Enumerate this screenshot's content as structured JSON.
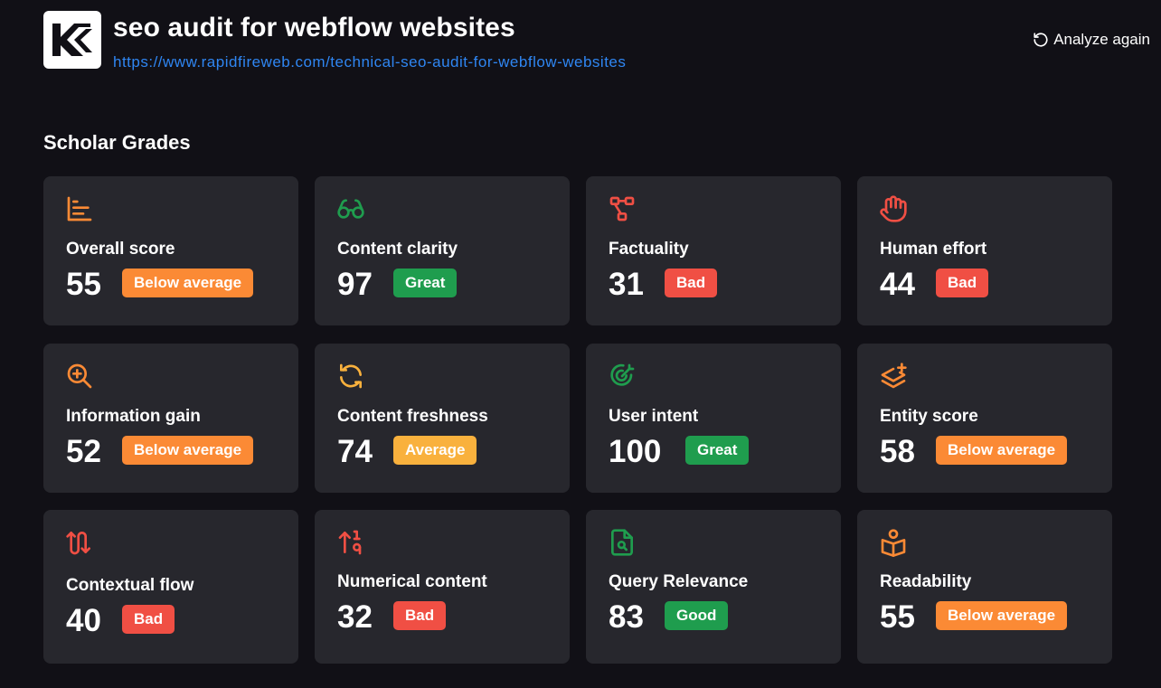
{
  "header": {
    "title": "seo audit for webflow websites",
    "url": "https://www.rapidfireweb.com/technical-seo-audit-for-webflow-websites",
    "analyze_label": "Analyze again"
  },
  "section_title": "Scholar Grades",
  "colors": {
    "orange": "#fb8a35",
    "green": "#1f9d4e",
    "red": "#f04f44",
    "amber": "#f9b13d",
    "link": "#2f86f2"
  },
  "cards": [
    {
      "label": "Overall score",
      "score": "55",
      "grade": "Below average",
      "icon": "bar-chart-icon"
    },
    {
      "label": "Content clarity",
      "score": "97",
      "grade": "Great",
      "icon": "glasses-icon"
    },
    {
      "label": "Factuality",
      "score": "31",
      "grade": "Bad",
      "icon": "workflow-icon"
    },
    {
      "label": "Human effort",
      "score": "44",
      "grade": "Bad",
      "icon": "hand-icon"
    },
    {
      "label": "Information gain",
      "score": "52",
      "grade": "Below average",
      "icon": "zoom-in-icon"
    },
    {
      "label": "Content freshness",
      "score": "74",
      "grade": "Average",
      "icon": "refresh-icon"
    },
    {
      "label": "User intent",
      "score": "100",
      "grade": "Great",
      "icon": "target-icon"
    },
    {
      "label": "Entity score",
      "score": "58",
      "grade": "Below average",
      "icon": "layers-plus-icon"
    },
    {
      "label": "Contextual flow",
      "score": "40",
      "grade": "Bad",
      "icon": "flow-arrows-icon"
    },
    {
      "label": "Numerical content",
      "score": "32",
      "grade": "Bad",
      "icon": "sort-numeric-icon"
    },
    {
      "label": "Query Relevance",
      "score": "83",
      "grade": "Good",
      "icon": "file-search-icon"
    },
    {
      "label": "Readability",
      "score": "55",
      "grade": "Below average",
      "icon": "book-user-icon"
    }
  ]
}
